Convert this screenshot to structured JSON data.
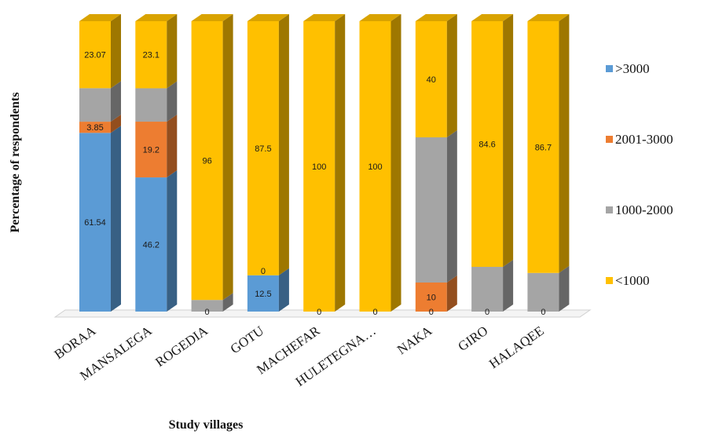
{
  "chart_data": {
    "type": "bar",
    "stacked": true,
    "three_d": true,
    "xlabel": "Study villages",
    "ylabel": "Percentage of respondents",
    "categories": [
      "BORAA",
      "MANSALEGA",
      "ROGEDIA",
      "GOTU",
      "MACHEFAR",
      "HULETEGNA…",
      "NAKA",
      "GIRO",
      "HALAQEE"
    ],
    "series": [
      {
        "name": ">3000",
        "color": "#5b9bd5",
        "values": [
          61.54,
          46.2,
          0,
          12.5,
          0,
          0,
          0,
          0,
          0
        ]
      },
      {
        "name": "2001-3000",
        "color": "#ed7d31",
        "values": [
          3.85,
          19.2,
          0,
          0,
          0,
          0,
          10,
          0,
          0
        ]
      },
      {
        "name": "1000-2000",
        "color": "#a5a5a5",
        "values": [
          11.54,
          11.5,
          4,
          0,
          0,
          0,
          50,
          15.4,
          13.3
        ]
      },
      {
        "name": "<1000",
        "color": "#ffc000",
        "values": [
          23.07,
          23.1,
          96,
          87.5,
          100,
          100,
          40,
          84.6,
          86.7
        ]
      }
    ],
    "data_labels": [
      [
        {
          "series": 0,
          "text": "61.54"
        },
        {
          "series": 1,
          "text": "3.85"
        },
        {
          "series": 3,
          "text": "23.07"
        }
      ],
      [
        {
          "series": 0,
          "text": "46.2"
        },
        {
          "series": 1,
          "text": "19.2"
        },
        {
          "series": 3,
          "text": "23.1"
        }
      ],
      [
        {
          "series": 0,
          "text": "0"
        },
        {
          "series": 3,
          "text": "96"
        }
      ],
      [
        {
          "series": 0,
          "text": "12.5"
        },
        {
          "series": 1,
          "text": "0"
        },
        {
          "series": 3,
          "text": "87.5"
        }
      ],
      [
        {
          "series": 0,
          "text": "0"
        },
        {
          "series": 3,
          "text": "100"
        }
      ],
      [
        {
          "series": 0,
          "text": "0"
        },
        {
          "series": 3,
          "text": "100"
        }
      ],
      [
        {
          "series": 0,
          "text": "0"
        },
        {
          "series": 1,
          "text": "10"
        },
        {
          "series": 3,
          "text": "40"
        }
      ],
      [
        {
          "series": 0,
          "text": "0"
        },
        {
          "series": 3,
          "text": "84.6"
        }
      ],
      [
        {
          "series": 0,
          "text": "0"
        },
        {
          "series": 3,
          "text": "86.7"
        }
      ]
    ],
    "legend": {
      "position": "right",
      "order": [
        0,
        1,
        2,
        3
      ]
    },
    "ylim": [
      0,
      100
    ],
    "grid": false
  }
}
